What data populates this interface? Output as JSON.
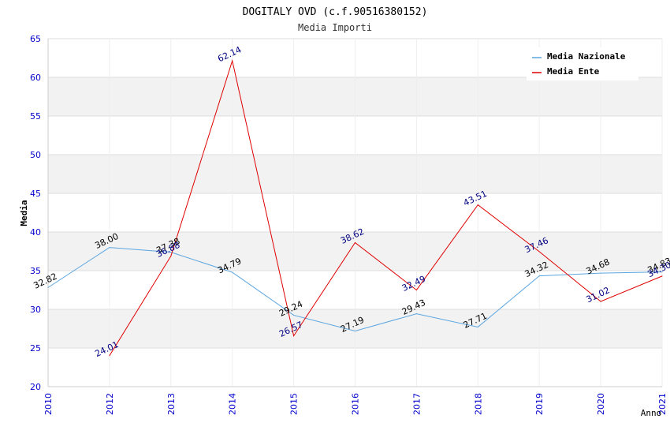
{
  "chart_data": {
    "type": "line",
    "title": "DOGITALY OVD (c.f.90516380152)",
    "subtitle": "Media Importi",
    "ylabel": "Media",
    "xlabel": "Anno",
    "ylim": [
      20,
      65
    ],
    "yticks": [
      "20",
      "25",
      "30",
      "35",
      "40",
      "45",
      "50",
      "55",
      "60",
      "65"
    ],
    "categories": [
      "2010",
      "2012",
      "2013",
      "2014",
      "2015",
      "2016",
      "2017",
      "2018",
      "2019",
      "2020",
      "2021"
    ],
    "legend_position": "top-right",
    "series": [
      {
        "name": "Media Nazionale",
        "color": "#5aa5e0",
        "label_color": "#000000",
        "values": [
          32.82,
          38.0,
          37.38,
          34.79,
          29.24,
          27.19,
          29.43,
          27.71,
          34.32,
          34.68,
          34.83
        ],
        "labels": [
          "32.82",
          "38.00",
          "37.38",
          "34.79",
          "29.24",
          "27.19",
          "29.43",
          "27.71",
          "34.32",
          "34.68",
          "34.83"
        ]
      },
      {
        "name": "Media Ente",
        "color": "#e00000",
        "label_color": "#000080",
        "values": [
          null,
          24.01,
          36.88,
          62.14,
          26.57,
          38.62,
          32.49,
          43.51,
          37.46,
          31.02,
          34.3
        ],
        "labels": [
          null,
          "24.01",
          "36.88",
          "62.14",
          "26.57",
          "38.62",
          "32.49",
          "43.51",
          "37.46",
          "31.02",
          "34.30"
        ]
      }
    ]
  }
}
